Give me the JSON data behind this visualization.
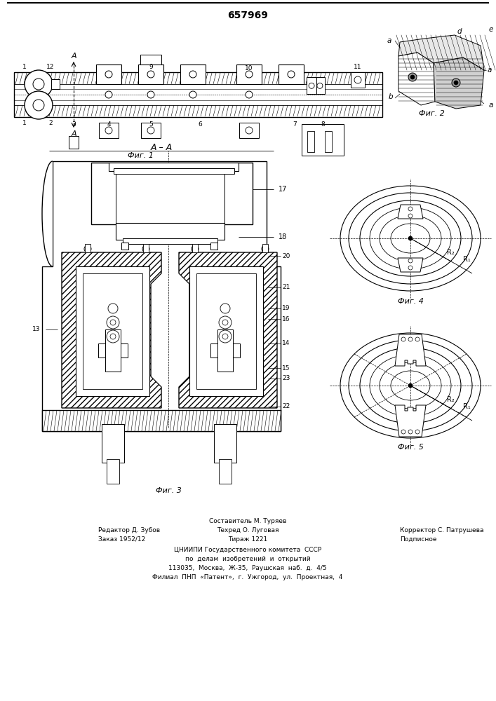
{
  "title": "657969",
  "background_color": "#ffffff",
  "line_color": "#000000",
  "footer_col1": [
    "Редактор Д. Зубов",
    "Заказ 1952/12"
  ],
  "footer_col2": [
    "Составитель М. Туряев",
    "Техред О. Луговая",
    "Тираж 1221"
  ],
  "footer_col3": [
    "Корректор С. Патрушева",
    "Подписное"
  ],
  "footer_center": [
    "ЦНИИПИ Государственного комитета  СССР",
    "по  делам  изобретений  и  открытий",
    "113035,  Москва,  Ж-35,  Раушская  наб.  д.  4/5",
    "Филиал  ПНП  «Патент»,  г.  Ужгород,  ул.  Проектная,  4"
  ]
}
